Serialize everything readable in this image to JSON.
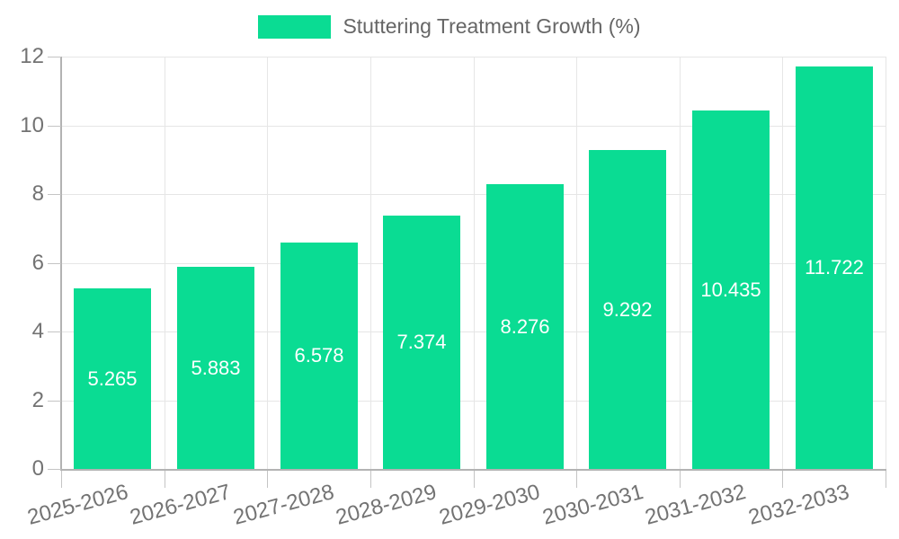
{
  "legend": {
    "label": "Stuttering Treatment Growth (%)"
  },
  "chart_data": {
    "type": "bar",
    "title": "",
    "xlabel": "",
    "ylabel": "",
    "series_name": "Stuttering Treatment Growth (%)",
    "categories": [
      "2025-2026",
      "2026-2027",
      "2027-2028",
      "2028-2029",
      "2029-2030",
      "2030-2031",
      "2031-2032",
      "2032-2033"
    ],
    "values": [
      5.265,
      5.883,
      6.578,
      7.374,
      8.276,
      9.292,
      10.435,
      11.722
    ],
    "value_labels": [
      "5.265",
      "5.883",
      "6.578",
      "7.374",
      "8.276",
      "9.292",
      "10.435",
      "11.722"
    ],
    "ylim": [
      0,
      12
    ],
    "yticks": [
      0,
      2,
      4,
      6,
      8,
      10,
      12
    ],
    "grid": true,
    "legend_position": "top-center",
    "bar_color": "#0adc93",
    "value_label_color": "#ffffff",
    "grid_color": "#e6e6e6",
    "axis_color": "#b3b3b3",
    "tick_color": "#c4c4c4",
    "tick_text_color": "#737373",
    "legend_text_color": "#666666",
    "background_color": "#ffffff"
  }
}
